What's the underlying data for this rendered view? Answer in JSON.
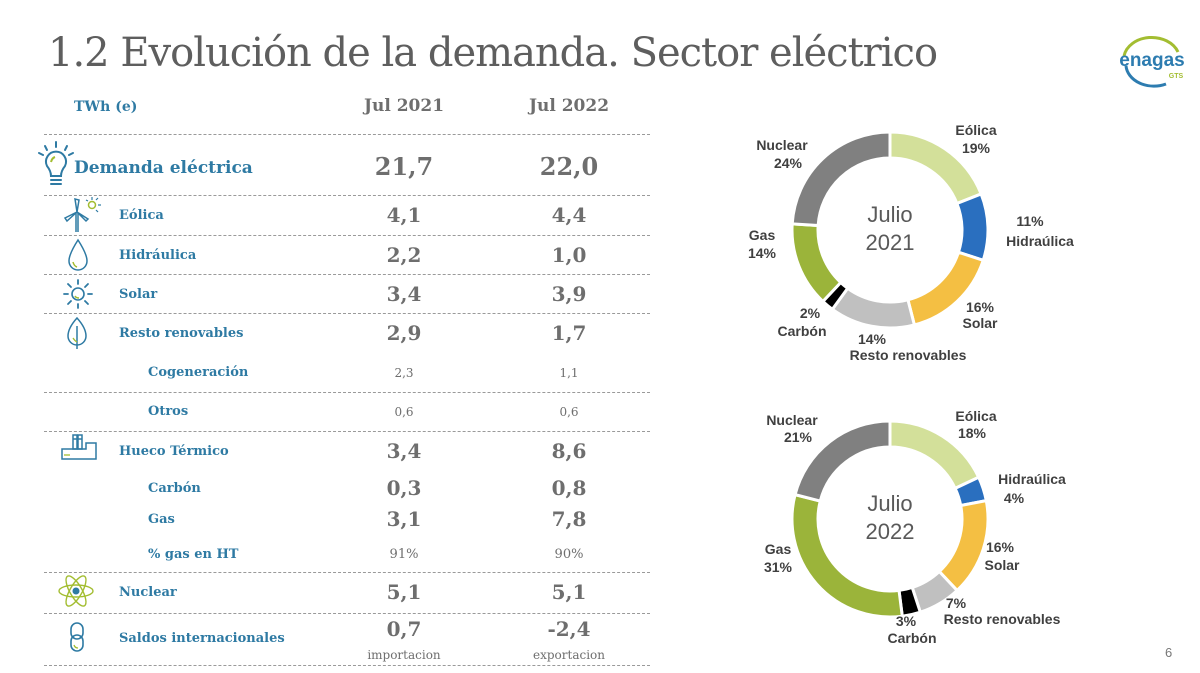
{
  "page": {
    "title": "1.2 Evolución de la demanda. Sector eléctrico",
    "page_number": "6",
    "logo": {
      "name": "enagas",
      "sub": "GTS"
    }
  },
  "table": {
    "unit": "TWh (e)",
    "columns": [
      "Jul 2021",
      "Jul 2022"
    ],
    "rows": [
      {
        "label": "Demanda eléctrica",
        "icon": "lightbulb-icon",
        "v2021": "21,7",
        "v2022": "22,0"
      },
      {
        "label": "Eólica",
        "icon": "wind-turbine-icon",
        "v2021": "4,1",
        "v2022": "4,4"
      },
      {
        "label": "Hidráulica",
        "icon": "water-drop-icon",
        "v2021": "2,2",
        "v2022": "1,0"
      },
      {
        "label": "Solar",
        "icon": "sun-icon",
        "v2021": "3,4",
        "v2022": "3,9"
      },
      {
        "label": "Resto renovables",
        "icon": "leaf-icon",
        "v2021": "2,9",
        "v2022": "1,7"
      },
      {
        "label": "Cogeneración",
        "icon": "",
        "v2021": "2,3",
        "v2022": "1,1"
      },
      {
        "label": "Otros",
        "icon": "",
        "v2021": "0,6",
        "v2022": "0,6"
      },
      {
        "label": "Hueco Térmico",
        "icon": "factory-icon",
        "v2021": "3,4",
        "v2022": "8,6"
      },
      {
        "label": "Carbón",
        "icon": "",
        "v2021": "0,3",
        "v2022": "0,8"
      },
      {
        "label": "Gas",
        "icon": "",
        "v2021": "3,1",
        "v2022": "7,8"
      },
      {
        "label": "% gas en HT",
        "icon": "",
        "v2021": "91%",
        "v2022": "90%"
      },
      {
        "label": "Nuclear",
        "icon": "atom-icon",
        "v2021": "5,1",
        "v2022": "5,1"
      },
      {
        "label": "Saldos internacionales",
        "icon": "chain-link-icon",
        "v2021": "0,7",
        "v2022": "-2,4",
        "note2021": "importacion",
        "note2022": "exportacion"
      }
    ]
  },
  "chart_data": [
    {
      "type": "pie",
      "donut": true,
      "title": "Julio 2021",
      "center_label": [
        "Julio",
        "2021"
      ],
      "start": "12 o'clock",
      "direction": "clockwise",
      "categories": [
        "Eólica",
        "Hidraúlica",
        "Solar",
        "Resto renovables",
        "Carbón",
        "Gas",
        "Nuclear"
      ],
      "values": [
        19,
        11,
        16,
        14,
        2,
        14,
        24
      ],
      "labels": [
        "19%",
        "11%",
        "16%",
        "14%",
        "2%",
        "14%",
        "24%"
      ],
      "colors": [
        "#d3e09a",
        "#2a6fbf",
        "#f4bf43",
        "#c0c0c0",
        "#000000",
        "#9bb43a",
        "#808080"
      ]
    },
    {
      "type": "pie",
      "donut": true,
      "title": "Julio 2022",
      "center_label": [
        "Julio",
        "2022"
      ],
      "start": "12 o'clock",
      "direction": "clockwise",
      "categories": [
        "Eólica",
        "Hidraúlica",
        "Solar",
        "Resto renovables",
        "Carbón",
        "Gas",
        "Nuclear"
      ],
      "values": [
        18,
        4,
        16,
        7,
        3,
        31,
        21
      ],
      "labels": [
        "18%",
        "4%",
        "16%",
        "7%",
        "3%",
        "31%",
        "21%"
      ],
      "colors": [
        "#d3e09a",
        "#2a6fbf",
        "#f4bf43",
        "#c0c0c0",
        "#000000",
        "#9bb43a",
        "#808080"
      ]
    }
  ]
}
